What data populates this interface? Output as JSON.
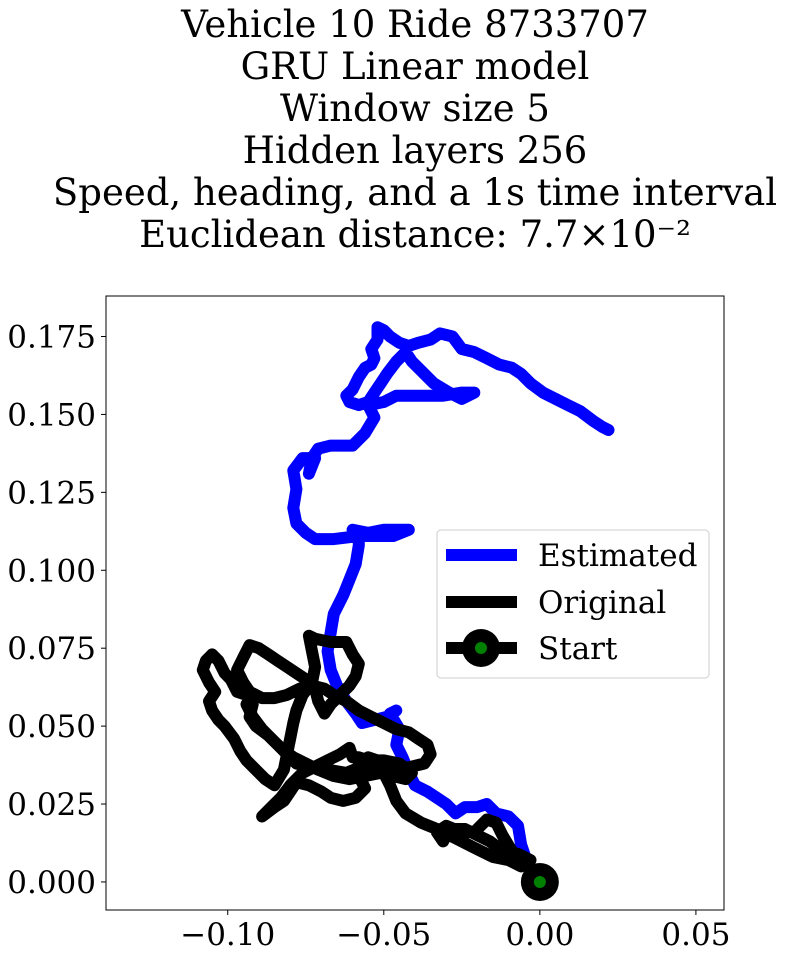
{
  "chart_data": {
    "type": "line",
    "title_lines": [
      "Vehicle 10 Ride 8733707",
      "GRU Linear model",
      "Window size 5",
      "Hidden layers 256",
      "Speed, heading, and a 1s time interval",
      "Euclidean distance: 7.7×10⁻²"
    ],
    "xlabel": "",
    "ylabel": "",
    "xlim": [
      -0.139,
      0.059
    ],
    "ylim": [
      -0.009,
      0.188
    ],
    "x_ticks": [
      -0.1,
      -0.05,
      0.0,
      0.05
    ],
    "x_tick_labels": [
      "−0.10",
      "−0.05",
      "0.00",
      "0.05"
    ],
    "y_ticks": [
      0.0,
      0.025,
      0.05,
      0.075,
      0.1,
      0.125,
      0.15,
      0.175
    ],
    "y_tick_labels": [
      "0.000",
      "0.025",
      "0.050",
      "0.075",
      "0.100",
      "0.125",
      "0.150",
      "0.175"
    ],
    "grid": false,
    "legend_position": "center-right",
    "series": [
      {
        "name": "Estimated",
        "color": "#0000ff",
        "points": [
          [
            0.0,
            0.0
          ],
          [
            -0.004,
            0.006
          ],
          [
            -0.006,
            0.012
          ],
          [
            -0.007,
            0.018
          ],
          [
            -0.01,
            0.021
          ],
          [
            -0.014,
            0.022
          ],
          [
            -0.017,
            0.025
          ],
          [
            -0.02,
            0.024
          ],
          [
            -0.024,
            0.024
          ],
          [
            -0.027,
            0.022
          ],
          [
            -0.03,
            0.025
          ],
          [
            -0.033,
            0.027
          ],
          [
            -0.036,
            0.029
          ],
          [
            -0.04,
            0.031
          ],
          [
            -0.042,
            0.035
          ],
          [
            -0.044,
            0.04
          ],
          [
            -0.046,
            0.044
          ],
          [
            -0.045,
            0.049
          ],
          [
            -0.048,
            0.054
          ],
          [
            -0.046,
            0.055
          ],
          [
            -0.049,
            0.053
          ],
          [
            -0.053,
            0.052
          ],
          [
            -0.057,
            0.051
          ],
          [
            -0.059,
            0.054
          ],
          [
            -0.062,
            0.058
          ],
          [
            -0.065,
            0.063
          ],
          [
            -0.067,
            0.068
          ],
          [
            -0.068,
            0.074
          ],
          [
            -0.067,
            0.08
          ],
          [
            -0.066,
            0.086
          ],
          [
            -0.063,
            0.092
          ],
          [
            -0.061,
            0.097
          ],
          [
            -0.059,
            0.102
          ],
          [
            -0.058,
            0.108
          ],
          [
            -0.058,
            0.112
          ],
          [
            -0.06,
            0.113
          ],
          [
            -0.055,
            0.112
          ],
          [
            -0.05,
            0.113
          ],
          [
            -0.042,
            0.113
          ],
          [
            -0.047,
            0.111
          ],
          [
            -0.053,
            0.111
          ],
          [
            -0.058,
            0.111
          ],
          [
            -0.066,
            0.11
          ],
          [
            -0.072,
            0.11
          ],
          [
            -0.075,
            0.112
          ],
          [
            -0.078,
            0.115
          ],
          [
            -0.079,
            0.12
          ],
          [
            -0.078,
            0.126
          ],
          [
            -0.079,
            0.132
          ],
          [
            -0.076,
            0.136
          ],
          [
            -0.072,
            0.136
          ],
          [
            -0.074,
            0.131
          ],
          [
            -0.073,
            0.136
          ],
          [
            -0.071,
            0.139
          ],
          [
            -0.067,
            0.14
          ],
          [
            -0.063,
            0.14
          ],
          [
            -0.06,
            0.14
          ],
          [
            -0.056,
            0.144
          ],
          [
            -0.053,
            0.149
          ],
          [
            -0.055,
            0.153
          ],
          [
            -0.05,
            0.154
          ],
          [
            -0.046,
            0.156
          ],
          [
            -0.039,
            0.156
          ],
          [
            -0.031,
            0.156
          ],
          [
            -0.025,
            0.157
          ],
          [
            -0.021,
            0.157
          ],
          [
            -0.025,
            0.155
          ],
          [
            -0.029,
            0.157
          ],
          [
            -0.034,
            0.16
          ],
          [
            -0.038,
            0.164
          ],
          [
            -0.041,
            0.167
          ],
          [
            -0.043,
            0.17
          ],
          [
            -0.046,
            0.167
          ],
          [
            -0.049,
            0.163
          ],
          [
            -0.051,
            0.16
          ],
          [
            -0.053,
            0.157
          ],
          [
            -0.055,
            0.154
          ],
          [
            -0.058,
            0.153
          ],
          [
            -0.061,
            0.154
          ],
          [
            -0.062,
            0.156
          ],
          [
            -0.06,
            0.158
          ],
          [
            -0.058,
            0.162
          ],
          [
            -0.056,
            0.165
          ],
          [
            -0.054,
            0.166
          ],
          [
            -0.053,
            0.168
          ],
          [
            -0.054,
            0.171
          ],
          [
            -0.052,
            0.174
          ],
          [
            -0.052,
            0.178
          ],
          [
            -0.05,
            0.177
          ],
          [
            -0.048,
            0.175
          ],
          [
            -0.045,
            0.173
          ],
          [
            -0.042,
            0.172
          ],
          [
            -0.039,
            0.173
          ],
          [
            -0.035,
            0.174
          ],
          [
            -0.032,
            0.176
          ],
          [
            -0.028,
            0.175
          ],
          [
            -0.025,
            0.171
          ],
          [
            -0.021,
            0.17
          ],
          [
            -0.017,
            0.168
          ],
          [
            -0.013,
            0.166
          ],
          [
            -0.009,
            0.165
          ],
          [
            -0.006,
            0.163
          ],
          [
            -0.003,
            0.16
          ],
          [
            0.001,
            0.157
          ],
          [
            0.005,
            0.155
          ],
          [
            0.009,
            0.153
          ],
          [
            0.013,
            0.151
          ],
          [
            0.017,
            0.148
          ],
          [
            0.02,
            0.146
          ],
          [
            0.022,
            0.145
          ]
        ]
      },
      {
        "name": "Original",
        "color": "#000000",
        "points": [
          [
            0.0,
            0.0
          ],
          [
            -0.003,
            0.004
          ],
          [
            -0.006,
            0.007
          ],
          [
            -0.009,
            0.01
          ],
          [
            -0.012,
            0.015
          ],
          [
            -0.014,
            0.019
          ],
          [
            -0.017,
            0.02
          ],
          [
            -0.021,
            0.016
          ],
          [
            -0.025,
            0.016
          ],
          [
            -0.03,
            0.018
          ],
          [
            -0.033,
            0.016
          ],
          [
            -0.031,
            0.013
          ],
          [
            -0.029,
            0.017
          ],
          [
            -0.024,
            0.017
          ],
          [
            -0.02,
            0.015
          ],
          [
            -0.016,
            0.013
          ],
          [
            -0.012,
            0.01
          ],
          [
            -0.007,
            0.009
          ],
          [
            -0.003,
            0.007
          ],
          [
            -0.006,
            0.005
          ],
          [
            -0.01,
            0.007
          ],
          [
            -0.015,
            0.008
          ],
          [
            -0.021,
            0.011
          ],
          [
            -0.027,
            0.014
          ],
          [
            -0.033,
            0.017
          ],
          [
            -0.038,
            0.019
          ],
          [
            -0.043,
            0.022
          ],
          [
            -0.046,
            0.026
          ],
          [
            -0.048,
            0.031
          ],
          [
            -0.05,
            0.035
          ],
          [
            -0.052,
            0.039
          ],
          [
            -0.055,
            0.04
          ],
          [
            -0.058,
            0.038
          ],
          [
            -0.058,
            0.034
          ],
          [
            -0.056,
            0.03
          ],
          [
            -0.059,
            0.027
          ],
          [
            -0.063,
            0.026
          ],
          [
            -0.067,
            0.027
          ],
          [
            -0.07,
            0.029
          ],
          [
            -0.074,
            0.031
          ],
          [
            -0.078,
            0.032
          ],
          [
            -0.08,
            0.029
          ],
          [
            -0.082,
            0.026
          ],
          [
            -0.085,
            0.024
          ],
          [
            -0.089,
            0.021
          ],
          [
            -0.086,
            0.024
          ],
          [
            -0.083,
            0.027
          ],
          [
            -0.08,
            0.031
          ],
          [
            -0.076,
            0.035
          ],
          [
            -0.072,
            0.037
          ],
          [
            -0.068,
            0.039
          ],
          [
            -0.064,
            0.041
          ],
          [
            -0.061,
            0.043
          ],
          [
            -0.06,
            0.04
          ],
          [
            -0.058,
            0.04
          ],
          [
            -0.055,
            0.039
          ],
          [
            -0.05,
            0.039
          ],
          [
            -0.045,
            0.038
          ],
          [
            -0.041,
            0.035
          ],
          [
            -0.043,
            0.033
          ],
          [
            -0.047,
            0.034
          ],
          [
            -0.052,
            0.036
          ],
          [
            -0.057,
            0.037
          ],
          [
            -0.062,
            0.035
          ],
          [
            -0.068,
            0.036
          ],
          [
            -0.074,
            0.037
          ],
          [
            -0.078,
            0.038
          ],
          [
            -0.081,
            0.041
          ],
          [
            -0.084,
            0.044
          ],
          [
            -0.087,
            0.047
          ],
          [
            -0.091,
            0.05
          ],
          [
            -0.093,
            0.053
          ],
          [
            -0.092,
            0.057
          ],
          [
            -0.094,
            0.06
          ],
          [
            -0.097,
            0.061
          ],
          [
            -0.099,
            0.065
          ],
          [
            -0.101,
            0.067
          ],
          [
            -0.103,
            0.071
          ],
          [
            -0.105,
            0.073
          ],
          [
            -0.107,
            0.071
          ],
          [
            -0.108,
            0.068
          ],
          [
            -0.106,
            0.064
          ],
          [
            -0.104,
            0.061
          ],
          [
            -0.106,
            0.058
          ],
          [
            -0.105,
            0.055
          ],
          [
            -0.103,
            0.052
          ],
          [
            -0.101,
            0.05
          ],
          [
            -0.098,
            0.046
          ],
          [
            -0.096,
            0.042
          ],
          [
            -0.094,
            0.039
          ],
          [
            -0.091,
            0.036
          ],
          [
            -0.088,
            0.033
          ],
          [
            -0.085,
            0.031
          ],
          [
            -0.082,
            0.036
          ],
          [
            -0.081,
            0.041
          ],
          [
            -0.08,
            0.046
          ],
          [
            -0.079,
            0.051
          ],
          [
            -0.078,
            0.055
          ],
          [
            -0.076,
            0.06
          ],
          [
            -0.073,
            0.064
          ],
          [
            -0.072,
            0.069
          ],
          [
            -0.073,
            0.074
          ],
          [
            -0.074,
            0.079
          ],
          [
            -0.072,
            0.078
          ],
          [
            -0.067,
            0.077
          ],
          [
            -0.062,
            0.077
          ],
          [
            -0.06,
            0.073
          ],
          [
            -0.058,
            0.07
          ],
          [
            -0.059,
            0.066
          ],
          [
            -0.061,
            0.063
          ],
          [
            -0.064,
            0.06
          ],
          [
            -0.067,
            0.057
          ],
          [
            -0.069,
            0.054
          ],
          [
            -0.071,
            0.058
          ],
          [
            -0.072,
            0.062
          ],
          [
            -0.075,
            0.065
          ],
          [
            -0.078,
            0.067
          ],
          [
            -0.081,
            0.069
          ],
          [
            -0.084,
            0.071
          ],
          [
            -0.087,
            0.073
          ],
          [
            -0.09,
            0.075
          ],
          [
            -0.093,
            0.076
          ],
          [
            -0.095,
            0.072
          ],
          [
            -0.097,
            0.068
          ],
          [
            -0.095,
            0.064
          ],
          [
            -0.093,
            0.061
          ],
          [
            -0.089,
            0.059
          ],
          [
            -0.085,
            0.059
          ],
          [
            -0.081,
            0.06
          ],
          [
            -0.077,
            0.062
          ],
          [
            -0.073,
            0.063
          ],
          [
            -0.069,
            0.062
          ],
          [
            -0.066,
            0.06
          ],
          [
            -0.062,
            0.058
          ],
          [
            -0.058,
            0.055
          ],
          [
            -0.054,
            0.053
          ],
          [
            -0.05,
            0.051
          ],
          [
            -0.046,
            0.049
          ],
          [
            -0.042,
            0.048
          ],
          [
            -0.039,
            0.046
          ],
          [
            -0.036,
            0.044
          ],
          [
            -0.035,
            0.041
          ],
          [
            -0.037,
            0.038
          ],
          [
            -0.041,
            0.037
          ],
          [
            -0.046,
            0.036
          ],
          [
            -0.051,
            0.035
          ],
          [
            -0.056,
            0.034
          ],
          [
            -0.061,
            0.033
          ],
          [
            -0.066,
            0.034
          ],
          [
            -0.071,
            0.036
          ],
          [
            -0.075,
            0.038
          ],
          [
            -0.079,
            0.04
          ],
          [
            -0.083,
            0.043
          ],
          [
            -0.086,
            0.046
          ],
          [
            -0.089,
            0.049
          ],
          [
            -0.092,
            0.053
          ],
          [
            -0.094,
            0.057
          ]
        ]
      },
      {
        "name": "Start",
        "color": "#000000",
        "marker_fill": "#008000",
        "points": [
          [
            0.0,
            0.0
          ]
        ]
      }
    ]
  }
}
